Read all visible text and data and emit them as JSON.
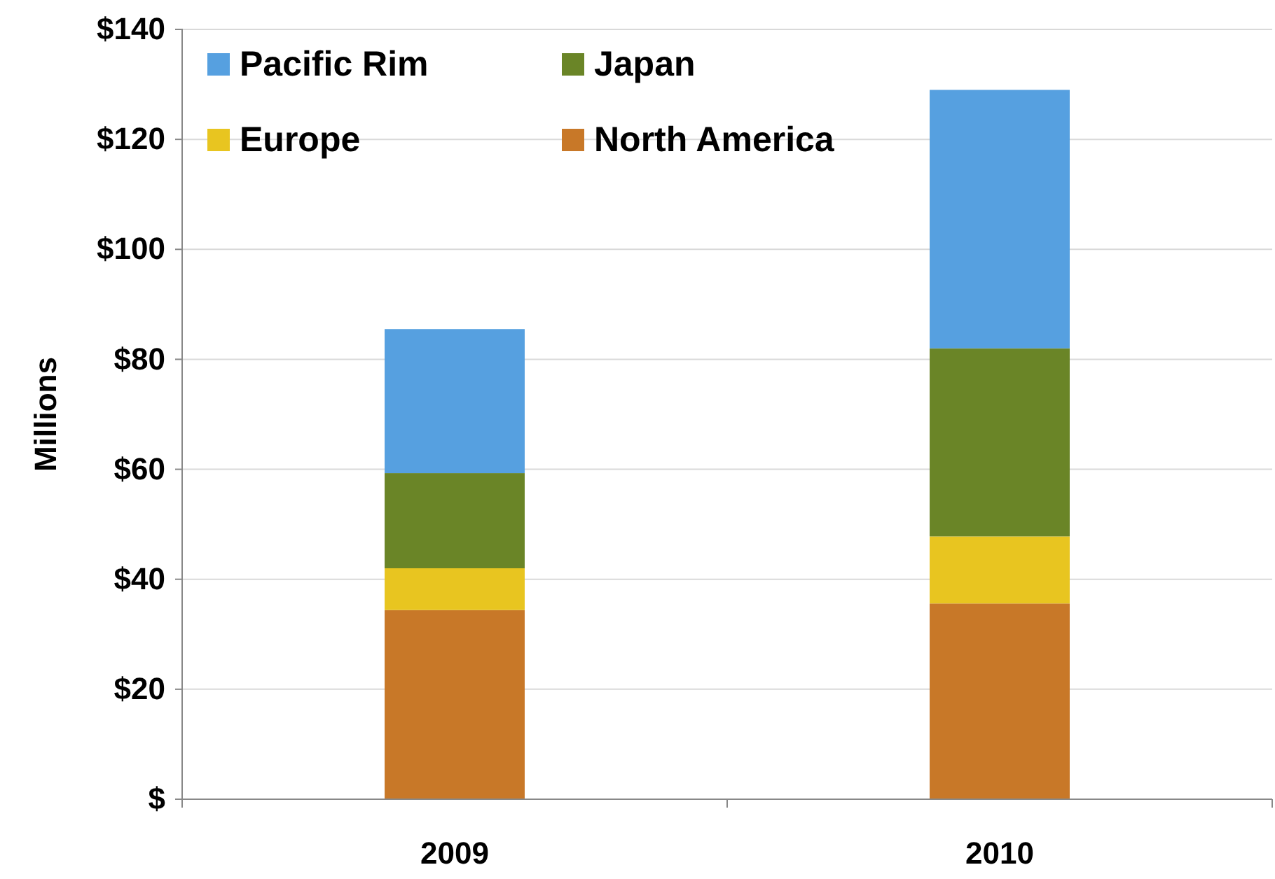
{
  "chart_data": {
    "type": "bar",
    "stacked": true,
    "ylabel": "Millions",
    "categories": [
      "2009",
      "2010"
    ],
    "series": [
      {
        "name": "North America",
        "color": "#c87828",
        "values": [
          34.4,
          35.6
        ]
      },
      {
        "name": "Europe",
        "color": "#e8c520",
        "values": [
          7.6,
          12.2
        ]
      },
      {
        "name": "Japan",
        "color": "#6a8527",
        "values": [
          17.3,
          34.2
        ]
      },
      {
        "name": "Pacific Rim",
        "color": "#56a0e0",
        "values": [
          26.2,
          47.0
        ]
      }
    ],
    "ylim": [
      0,
      140
    ],
    "yticks": [
      {
        "value": 0,
        "label": "$"
      },
      {
        "value": 20,
        "label": "$20"
      },
      {
        "value": 40,
        "label": "$40"
      },
      {
        "value": 60,
        "label": "$60"
      },
      {
        "value": 80,
        "label": "$80"
      },
      {
        "value": 100,
        "label": "$100"
      },
      {
        "value": 120,
        "label": "$120"
      },
      {
        "value": 140,
        "label": "$140"
      }
    ],
    "grid": "y",
    "legend": "top left"
  }
}
